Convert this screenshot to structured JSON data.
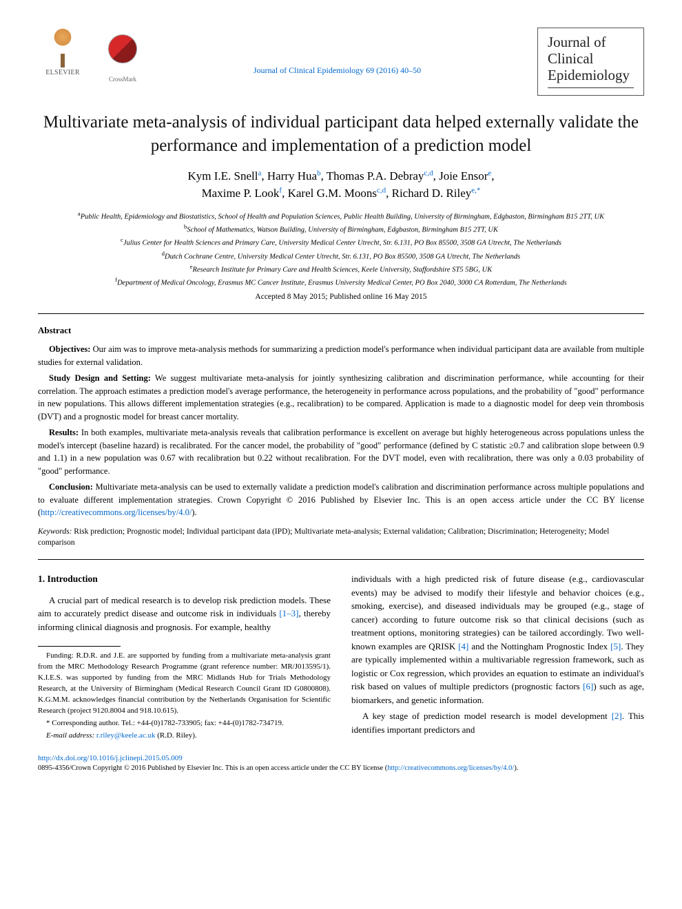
{
  "publisher": {
    "name": "ELSEVIER",
    "crossmark_label": "CrossMark"
  },
  "journal": {
    "citation": "Journal of Clinical Epidemiology 69 (2016) 40–50",
    "box_line1": "Journal of",
    "box_line2": "Clinical",
    "box_line3": "Epidemiology"
  },
  "article": {
    "title": "Multivariate meta-analysis of individual participant data helped externally validate the performance and implementation of a prediction model",
    "authors_line1": "Kym I.E. Snell",
    "sup_a": "a",
    "author2": ", Harry Hua",
    "sup_b": "b",
    "author3": ", Thomas P.A. Debray",
    "sup_cd": "c,d",
    "author4": ", Joie Ensor",
    "sup_e": "e",
    "author5": "Maxime P. Look",
    "sup_f": "f",
    "author6": ", Karel G.M. Moons",
    "sup_cd2": "c,d",
    "author7": ", Richard D. Riley",
    "sup_e_star": "e,",
    "star": "*"
  },
  "affiliations": {
    "a": "Public Health, Epidemiology and Biostatistics, School of Health and Population Sciences, Public Health Building, University of Birmingham, Edgbaston, Birmingham B15 2TT, UK",
    "b": "School of Mathematics, Watson Building, University of Birmingham, Edgbaston, Birmingham B15 2TT, UK",
    "c": "Julius Center for Health Sciences and Primary Care, University Medical Center Utrecht, Str. 6.131, PO Box 85500, 3508 GA Utrecht, The Netherlands",
    "d": "Dutch Cochrane Centre, University Medical Center Utrecht, Str. 6.131, PO Box 85500, 3508 GA Utrecht, The Netherlands",
    "e": "Research Institute for Primary Care and Health Sciences, Keele University, Staffordshire ST5 5BG, UK",
    "f": "Department of Medical Oncology, Erasmus MC Cancer Institute, Erasmus University Medical Center, PO Box 2040, 3000 CA Rotterdam, The Netherlands"
  },
  "dates": "Accepted 8 May 2015; Published online 16 May 2015",
  "abstract": {
    "heading": "Abstract",
    "objectives_label": "Objectives:",
    "objectives": " Our aim was to improve meta-analysis methods for summarizing a prediction model's performance when individual participant data are available from multiple studies for external validation.",
    "design_label": "Study Design and Setting:",
    "design": " We suggest multivariate meta-analysis for jointly synthesizing calibration and discrimination performance, while accounting for their correlation. The approach estimates a prediction model's average performance, the heterogeneity in performance across populations, and the probability of \"good\" performance in new populations. This allows different implementation strategies (e.g., recalibration) to be compared. Application is made to a diagnostic model for deep vein thrombosis (DVT) and a prognostic model for breast cancer mortality.",
    "results_label": "Results:",
    "results": " In both examples, multivariate meta-analysis reveals that calibration performance is excellent on average but highly heterogeneous across populations unless the model's intercept (baseline hazard) is recalibrated. For the cancer model, the probability of \"good\" performance (defined by C statistic ≥0.7 and calibration slope between 0.9 and 1.1) in a new population was 0.67 with recalibration but 0.22 without recalibration. For the DVT model, even with recalibration, there was only a 0.03 probability of \"good\" performance.",
    "conclusion_label": "Conclusion:",
    "conclusion_text": " Multivariate meta-analysis can be used to externally validate a prediction model's calibration and discrimination performance across multiple populations and to evaluate different implementation strategies.   Crown Copyright © 2016 Published by Elsevier Inc. This is an open access article under the CC BY license (",
    "license_url": "http://creativecommons.org/licenses/by/4.0/",
    "conclusion_end": ")."
  },
  "keywords": {
    "label": "Keywords:",
    "text": " Risk prediction; Prognostic model; Individual participant data (IPD); Multivariate meta-analysis; External validation; Calibration; Discrimination; Heterogeneity; Model comparison"
  },
  "body": {
    "intro_heading": "1. Introduction",
    "intro_p1a": "A crucial part of medical research is to develop risk prediction models. These aim to accurately predict disease and outcome risk in individuals ",
    "intro_ref1": "[1–3]",
    "intro_p1b": ", thereby informing clinical diagnosis and prognosis. For example, healthy",
    "col2_p1a": "individuals with a high predicted risk of future disease (e.g., cardiovascular events) may be advised to modify their lifestyle and behavior choices (e.g., smoking, exercise), and diseased individuals may be grouped (e.g., stage of cancer) according to future outcome risk so that clinical decisions (such as treatment options, monitoring strategies) can be tailored accordingly. Two well-known examples are QRISK ",
    "col2_ref4": "[4]",
    "col2_p1b": " and the Nottingham Prognostic Index ",
    "col2_ref5": "[5]",
    "col2_p1c": ". They are typically implemented within a multivariable regression framework, such as logistic or Cox regression, which provides an equation to estimate an individual's risk based on values of multiple predictors (prognostic factors ",
    "col2_ref6": "[6]",
    "col2_p1d": ") such as age, biomarkers, and genetic information.",
    "col2_p2a": "A key stage of prediction model research is model development ",
    "col2_ref2": "[2]",
    "col2_p2b": ". This identifies important predictors and"
  },
  "footnotes": {
    "funding": "Funding: R.D.R. and J.E. are supported by funding from a multivariate meta-analysis grant from the MRC Methodology Research Programme (grant reference number: MR/J013595/1). K.I.E.S. was supported by funding from the MRC Midlands Hub for Trials Methodology Research, at the University of Birmingham (Medical Research Council Grant ID G0800808). K.G.M.M. acknowledges financial contribution by the Netherlands Organisation for Scientific Research (project 9120.8004 and 918.10.615).",
    "corresponding": "* Corresponding author. Tel.: +44-(0)1782-733905; fax: +44-(0)1782-734719.",
    "email_label": "E-mail address:",
    "email": " r.riley@keele.ac.uk",
    "email_suffix": " (R.D. Riley)."
  },
  "footer": {
    "doi": "http://dx.doi.org/10.1016/j.jclinepi.2015.05.009",
    "copyright_a": "0895-4356/Crown Copyright © 2016 Published by Elsevier Inc. This is an open access article under the CC BY license (",
    "license_url": "http://creativecommons.org/licenses/by/4.0/",
    "copyright_b": ")."
  }
}
